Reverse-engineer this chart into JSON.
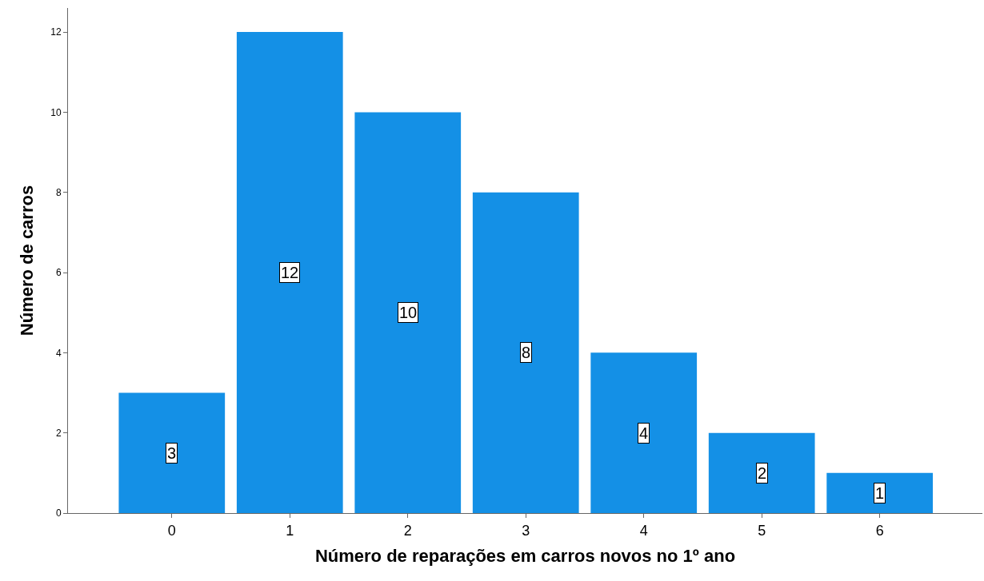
{
  "chart_data": {
    "type": "bar",
    "xlabel": "Número de reparações em carros novos no 1º ano",
    "ylabel": "Número de carros",
    "categories": [
      "0",
      "1",
      "2",
      "3",
      "4",
      "5",
      "6"
    ],
    "values": [
      3,
      12,
      10,
      8,
      4,
      2,
      1
    ],
    "color": "#1490e6",
    "ylim": [
      0,
      12.6
    ],
    "yticks": [
      0,
      2,
      4,
      6,
      8,
      10,
      12
    ],
    "data_labels": true
  }
}
